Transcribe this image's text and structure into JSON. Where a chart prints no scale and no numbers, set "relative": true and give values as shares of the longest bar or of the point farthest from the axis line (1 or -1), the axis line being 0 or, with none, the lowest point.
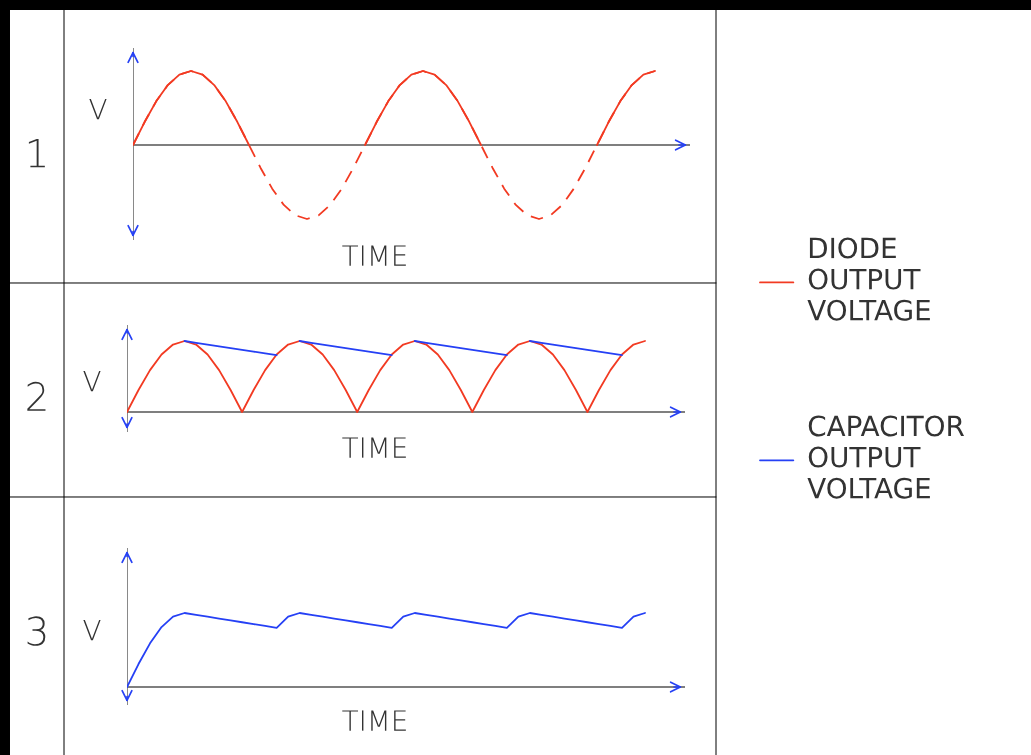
{
  "chart_data": [
    {
      "type": "line",
      "relative": true,
      "title": "1",
      "ylabel": "V",
      "xlabel": "TIME",
      "categories": [
        null,
        null,
        null,
        null,
        null,
        null,
        null,
        null,
        null,
        null,
        null,
        null,
        null,
        null,
        null,
        null,
        null,
        null,
        null,
        null,
        null,
        null,
        null,
        null,
        null,
        null,
        null,
        null,
        null,
        null,
        null,
        null,
        null,
        null,
        null,
        null,
        null,
        null,
        null,
        null,
        null,
        null,
        null,
        null,
        null,
        null
      ],
      "series": [
        {
          "color": "#f23a22",
          "line_style": "dashed",
          "values": [
            0,
            0.31,
            0.59,
            0.81,
            0.95,
            1,
            0.95,
            0.81,
            0.59,
            0.31,
            0,
            -0.31,
            -0.59,
            -0.81,
            -0.95,
            -1,
            -0.95,
            -0.81,
            -0.59,
            -0.31,
            0,
            0.31,
            0.59,
            0.81,
            0.95,
            1,
            0.95,
            0.81,
            0.59,
            0.31,
            0,
            -0.31,
            -0.59,
            -0.81,
            -0.95,
            -1,
            -0.95,
            -0.81,
            -0.59,
            -0.31,
            0,
            0.31,
            0.59,
            0.81,
            0.95,
            1
          ]
        },
        {
          "color": "#f23a22",
          "line_style": "solid",
          "values": [
            0,
            0.31,
            0.59,
            0.81,
            0.95,
            1,
            0.95,
            0.81,
            0.59,
            0.31,
            0,
            null,
            null,
            null,
            null,
            null,
            null,
            null,
            null,
            null,
            0,
            0.31,
            0.59,
            0.81,
            0.95,
            1,
            0.95,
            0.81,
            0.59,
            0.31,
            0,
            null,
            null,
            null,
            null,
            null,
            null,
            null,
            null,
            null,
            0,
            0.31,
            0.59,
            0.81,
            0.95,
            1
          ]
        }
      ]
    },
    {
      "type": "line",
      "relative": true,
      "title": "2",
      "ylabel": "V",
      "xlabel": "TIME",
      "legend": "right",
      "categories": [
        null,
        null,
        null,
        null,
        null,
        null,
        null,
        null,
        null,
        null,
        null,
        null,
        null,
        null,
        null,
        null,
        null,
        null,
        null,
        null,
        null,
        null,
        null,
        null,
        null,
        null,
        null,
        null,
        null,
        null,
        null,
        null,
        null,
        null,
        null,
        null,
        null,
        null,
        null,
        null,
        null,
        null,
        null,
        null,
        null,
        null
      ],
      "series": [
        {
          "name": "DIODE\nOUTPUT\nVOLTAGE",
          "color": "#f23a22",
          "values": [
            0,
            0.31,
            0.59,
            0.81,
            0.95,
            1,
            0.95,
            0.81,
            0.59,
            0.31,
            0,
            0.31,
            0.59,
            0.81,
            0.95,
            1,
            0.95,
            0.81,
            0.59,
            0.31,
            0,
            0.31,
            0.59,
            0.81,
            0.95,
            1,
            0.95,
            0.81,
            0.59,
            0.31,
            0,
            0.31,
            0.59,
            0.81,
            0.95,
            1,
            0.95,
            0.81,
            0.59,
            0.31,
            0,
            0.31,
            0.59,
            0.81,
            0.95,
            1
          ]
        },
        {
          "name": "CAPACITOR\nOUTPUT\nVOLTAGE",
          "color": "#2540f5",
          "values": [
            null,
            null,
            null,
            null,
            null,
            1,
            0.975,
            0.95,
            0.925,
            0.9,
            0.875,
            0.85,
            0.825,
            0.8,
            null,
            1,
            0.975,
            0.95,
            0.925,
            0.9,
            0.875,
            0.85,
            0.825,
            0.8,
            null,
            1,
            0.975,
            0.95,
            0.925,
            0.9,
            0.875,
            0.85,
            0.825,
            0.8,
            null,
            1,
            0.975,
            0.95,
            0.925,
            0.9,
            0.875,
            0.85,
            0.825,
            0.8,
            null,
            null
          ]
        }
      ]
    },
    {
      "type": "line",
      "relative": true,
      "title": "3",
      "ylabel": "V",
      "xlabel": "TIME",
      "categories": [
        null,
        null,
        null,
        null,
        null,
        null,
        null,
        null,
        null,
        null,
        null,
        null,
        null,
        null,
        null,
        null,
        null,
        null,
        null,
        null,
        null,
        null,
        null,
        null,
        null,
        null,
        null,
        null,
        null,
        null,
        null,
        null,
        null,
        null,
        null,
        null,
        null,
        null,
        null,
        null,
        null,
        null,
        null,
        null,
        null,
        null
      ],
      "series": [
        {
          "color": "#2540f5",
          "values": [
            0,
            0.31,
            0.59,
            0.81,
            0.95,
            1,
            0.975,
            0.95,
            0.925,
            0.9,
            0.875,
            0.85,
            0.825,
            0.8,
            0.95,
            1,
            0.975,
            0.95,
            0.925,
            0.9,
            0.875,
            0.85,
            0.825,
            0.8,
            0.95,
            1,
            0.975,
            0.95,
            0.925,
            0.9,
            0.875,
            0.85,
            0.825,
            0.8,
            0.95,
            1,
            0.975,
            0.95,
            0.925,
            0.9,
            0.875,
            0.85,
            0.825,
            0.8,
            0.95,
            1
          ]
        }
      ]
    }
  ]
}
